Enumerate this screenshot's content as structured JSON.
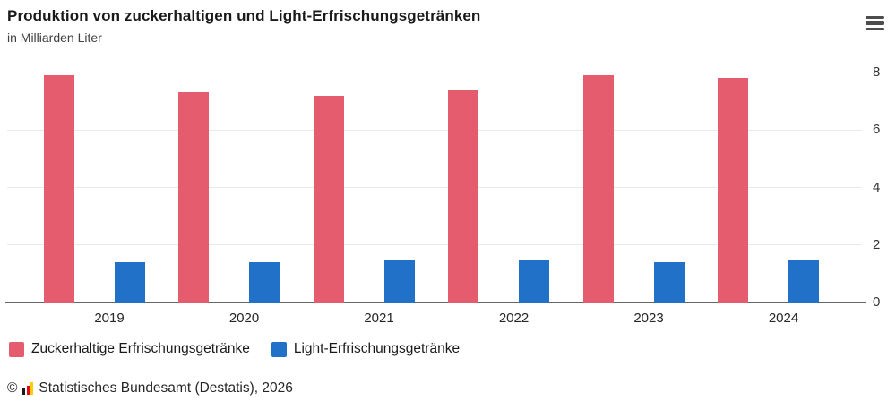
{
  "header": {
    "title": "Produktion von zuckerhaltigen und Light-Erfrischungsgetränken",
    "subtitle": "in Milliarden Liter",
    "menu_icon": "hamburger-menu-icon"
  },
  "chart_data": {
    "type": "bar",
    "title": "Produktion von zuckerhaltigen und Light-Erfrischungsgetränken",
    "subtitle": "in Milliarden Liter",
    "categories": [
      "2019",
      "2020",
      "2021",
      "2022",
      "2023",
      "2024"
    ],
    "series": [
      {
        "name": "Zuckerhaltige Erfrischungsgetränke",
        "color": "#e45c6e",
        "values": [
          7.9,
          7.3,
          7.2,
          7.4,
          7.9,
          7.8
        ]
      },
      {
        "name": "Light-Erfrischungsgetränke",
        "color": "#2171c9",
        "values": [
          1.4,
          1.4,
          1.5,
          1.5,
          1.4,
          1.5
        ]
      }
    ],
    "xlabel": "",
    "ylabel": "in Milliarden Liter",
    "ylim": [
      0,
      8
    ],
    "yticks": [
      0,
      2,
      4,
      6,
      8
    ],
    "ytick_labels": [
      "0",
      "2",
      "4",
      "6",
      "8"
    ],
    "ytick_side": "right",
    "grid": true,
    "legend_position": "bottom"
  },
  "legend": {
    "items": [
      {
        "label": "Zuckerhaltige Erfrischungsgetränke",
        "color": "#e45c6e"
      },
      {
        "label": "Light-Erfrischungsgetränke",
        "color": "#2171c9"
      }
    ]
  },
  "footer": {
    "copyright": "©",
    "logo_icon": "destatis-bars-icon",
    "source": "Statistisches Bundesamt (Destatis), 2026"
  },
  "colors": {
    "series_sugar": "#e45c6e",
    "series_light": "#2171c9",
    "gridline": "#e9e9e9",
    "axis": "#666666",
    "title_text": "#1a1a1a",
    "tick_text": "#333333",
    "menu_icon": "#4d4d4d",
    "logo_black": "#1a1a1a",
    "logo_red": "#e30613",
    "logo_gold": "#ffcc00"
  }
}
